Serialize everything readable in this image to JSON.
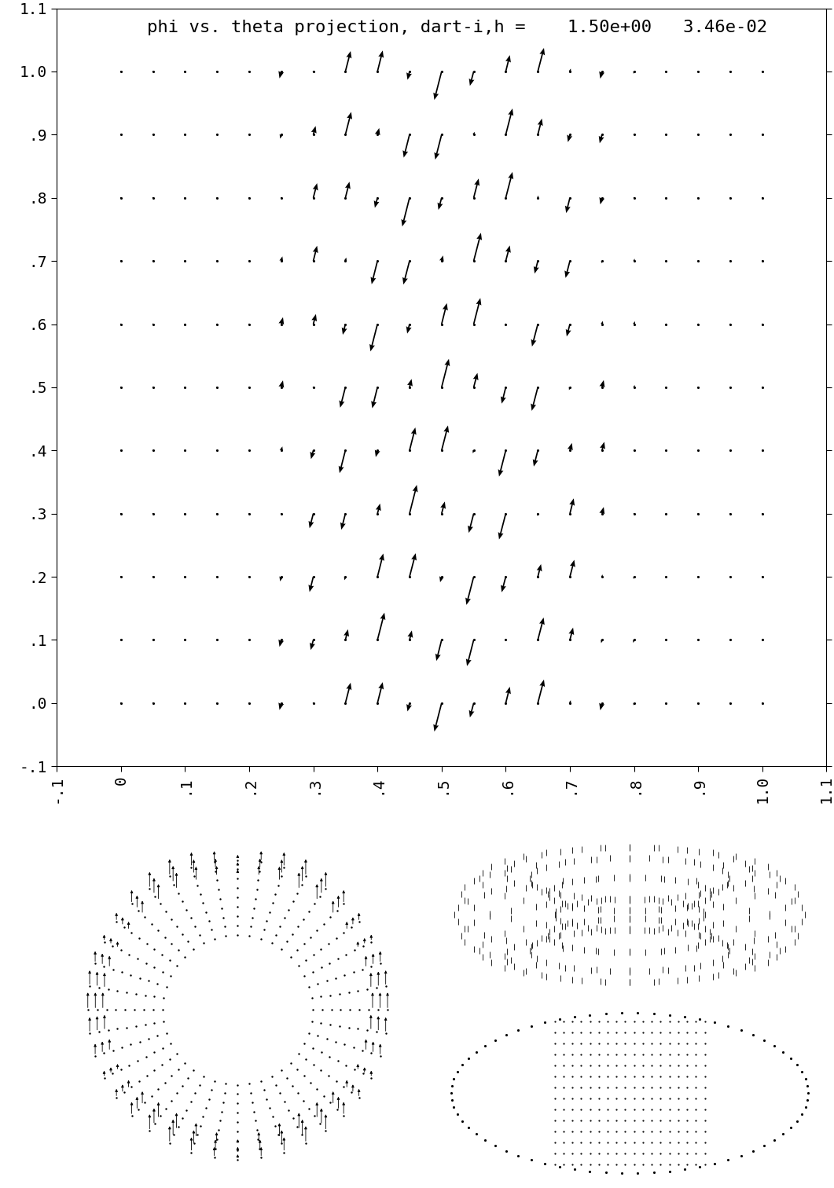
{
  "chart_data": {
    "type": "quiver",
    "title": "phi vs. theta projection, dart-i,h =    1.50e+00   3.46e-02",
    "xlim": [
      -0.1,
      1.1
    ],
    "ylim": [
      -0.1,
      1.1
    ],
    "xticks": [
      {
        "value": -0.1,
        "label": "-.1"
      },
      0,
      {
        "value": 0.1,
        "label": ".1"
      },
      {
        "value": 0.2,
        "label": ".2"
      },
      {
        "value": 0.3,
        "label": ".3"
      },
      {
        "value": 0.4,
        "label": ".4"
      },
      {
        "value": 0.5,
        "label": ".5"
      },
      {
        "value": 0.6,
        "label": ".6"
      },
      {
        "value": 0.7,
        "label": ".7"
      },
      {
        "value": 0.8,
        "label": ".8"
      },
      {
        "value": 0.9,
        "label": ".9"
      },
      1.0,
      1.1
    ],
    "yticks": [
      {
        "value": -0.1,
        "label": "-.1"
      },
      {
        "value": 0,
        "label": ".0"
      },
      {
        "value": 0.1,
        "label": ".1"
      },
      {
        "value": 0.2,
        "label": ".2"
      },
      {
        "value": 0.3,
        "label": ".3"
      },
      {
        "value": 0.4,
        "label": ".4"
      },
      {
        "value": 0.5,
        "label": ".5"
      },
      {
        "value": 0.6,
        "label": ".6"
      },
      {
        "value": 0.7,
        "label": ".7"
      },
      {
        "value": 0.8,
        "label": ".8"
      },
      {
        "value": 0.9,
        "label": ".9"
      },
      1.0,
      1.1
    ],
    "x": [
      0,
      0.05,
      0.1,
      0.15,
      0.2,
      0.25,
      0.3,
      0.35,
      0.4,
      0.45,
      0.5,
      0.55,
      0.6,
      0.65,
      0.7,
      0.75,
      0.8,
      0.85,
      0.9,
      0.95,
      1.0
    ],
    "y": [
      0,
      0.1,
      0.2,
      0.3,
      0.4,
      0.5,
      0.6,
      0.7,
      0.8,
      0.9,
      1.0
    ],
    "u": [
      [
        0,
        0,
        0,
        0,
        0,
        -0.06,
        -0.01,
        0.18,
        0.18,
        -0.07,
        -0.25,
        -0.13,
        0.14,
        0.21,
        0.03,
        -0.06,
        -0.02,
        0,
        0,
        0,
        0
      ],
      [
        0,
        0,
        0,
        0,
        0,
        -0.06,
        -0.09,
        0.09,
        0.24,
        0.08,
        -0.18,
        -0.23,
        0.01,
        0.2,
        0.11,
        -0.03,
        -0.03,
        0,
        0,
        0,
        0
      ],
      [
        0,
        0,
        0,
        0,
        0,
        -0.04,
        -0.13,
        -0.03,
        0.2,
        0.21,
        -0.05,
        -0.25,
        -0.14,
        0.11,
        0.15,
        0.02,
        -0.02,
        0,
        0,
        0,
        0
      ],
      [
        0,
        0,
        0,
        0,
        0,
        0,
        -0.13,
        -0.14,
        0.09,
        0.25,
        0.11,
        -0.17,
        -0.23,
        -0.02,
        0.13,
        0.06,
        -0.01,
        0,
        0,
        0,
        0
      ],
      [
        0,
        0,
        0,
        0,
        0,
        0.04,
        -0.08,
        -0.2,
        -0.06,
        0.2,
        0.22,
        -0.03,
        -0.23,
        -0.14,
        0.07,
        0.08,
        0.01,
        0,
        0,
        0,
        0
      ],
      [
        0,
        0,
        0,
        0,
        0,
        0.06,
        0.01,
        -0.18,
        -0.18,
        0.07,
        0.25,
        0.13,
        -0.14,
        -0.21,
        -0.03,
        0.06,
        0.02,
        0,
        0,
        0,
        0
      ],
      [
        0,
        0,
        0,
        0,
        0,
        0.06,
        0.09,
        -0.09,
        -0.24,
        -0.08,
        0.18,
        0.23,
        -0.01,
        -0.2,
        -0.11,
        0.03,
        0.03,
        0,
        0,
        0,
        0
      ],
      [
        0,
        0,
        0,
        0,
        0,
        0.04,
        0.13,
        0.03,
        -0.2,
        -0.21,
        0.05,
        0.25,
        0.14,
        -0.11,
        -0.15,
        -0.02,
        0.02,
        0,
        0,
        0,
        0
      ],
      [
        0,
        0,
        0,
        0,
        0,
        0,
        0.13,
        0.14,
        -0.09,
        -0.25,
        -0.11,
        0.17,
        0.23,
        0.02,
        -0.13,
        -0.06,
        -0.01,
        0,
        0,
        0,
        0
      ],
      [
        0,
        0,
        0,
        0,
        0,
        -0.04,
        0.08,
        0.2,
        0.06,
        -0.2,
        -0.22,
        0.03,
        0.23,
        0.14,
        -0.07,
        -0.08,
        -0.01,
        0,
        0,
        0,
        0
      ],
      [
        0,
        0,
        0,
        0,
        0,
        -0.06,
        -0.01,
        0.18,
        0.18,
        -0.07,
        -0.25,
        -0.13,
        0.14,
        0.21,
        0.03,
        -0.06,
        -0.02,
        0,
        0,
        0,
        0
      ]
    ],
    "v": [
      [
        0,
        0,
        0,
        0,
        0,
        -0.24,
        -0.03,
        0.71,
        0.73,
        -0.29,
        -0.99,
        -0.5,
        0.57,
        0.82,
        0.1,
        -0.25,
        -0.08,
        0,
        0,
        0,
        0
      ],
      [
        0,
        0,
        0,
        0,
        0,
        -0.24,
        -0.35,
        0.37,
        0.95,
        0.33,
        -0.73,
        -0.91,
        0.02,
        0.78,
        0.43,
        -0.11,
        -0.1,
        0,
        0,
        0,
        0
      ],
      [
        0,
        0,
        0,
        0,
        0,
        -0.16,
        -0.53,
        -0.12,
        0.81,
        0.82,
        -0.19,
        -0.98,
        -0.54,
        0.44,
        0.59,
        0.08,
        -0.08,
        0,
        0,
        0,
        0
      ],
      [
        0,
        0,
        0,
        0,
        0,
        -0.01,
        -0.51,
        -0.56,
        0.35,
        1.0,
        0.42,
        -0.67,
        -0.9,
        -0.08,
        0.53,
        0.23,
        -0.03,
        0,
        0,
        0,
        0
      ],
      [
        0,
        0,
        0,
        0,
        0,
        0.14,
        -0.3,
        -0.79,
        -0.23,
        0.8,
        0.87,
        -0.1,
        -0.91,
        -0.56,
        0.26,
        0.3,
        0.04,
        0,
        0,
        0,
        0
      ],
      [
        0,
        0,
        0,
        0,
        0,
        0.24,
        0.03,
        -0.71,
        -0.73,
        0.29,
        0.99,
        0.5,
        -0.57,
        -0.82,
        -0.1,
        0.25,
        0.08,
        0,
        0,
        0,
        0
      ],
      [
        0,
        0,
        0,
        0,
        0,
        0.24,
        0.35,
        -0.37,
        -0.95,
        -0.33,
        0.73,
        0.91,
        -0.02,
        -0.78,
        -0.43,
        0.11,
        0.1,
        0,
        0,
        0,
        0
      ],
      [
        0,
        0,
        0,
        0,
        0,
        0.16,
        0.53,
        0.12,
        -0.81,
        -0.82,
        0.19,
        0.98,
        0.54,
        -0.44,
        -0.59,
        -0.08,
        0.08,
        0,
        0,
        0,
        0
      ],
      [
        0,
        0,
        0,
        0,
        0,
        0.01,
        0.51,
        0.56,
        -0.35,
        -1.0,
        -0.42,
        0.67,
        0.9,
        0.08,
        -0.53,
        -0.23,
        0.03,
        0,
        0,
        0,
        0
      ],
      [
        0,
        0,
        0,
        0,
        0,
        -0.14,
        0.3,
        0.79,
        0.23,
        -0.8,
        -0.87,
        0.1,
        0.91,
        0.56,
        -0.26,
        -0.3,
        -0.04,
        0,
        0,
        0,
        0
      ],
      [
        0,
        0,
        0,
        0,
        0,
        -0.24,
        -0.03,
        0.71,
        0.73,
        -0.29,
        -0.99,
        -0.5,
        0.57,
        0.82,
        0.1,
        -0.25,
        -0.08,
        0,
        0,
        0,
        0
      ]
    ]
  }
}
